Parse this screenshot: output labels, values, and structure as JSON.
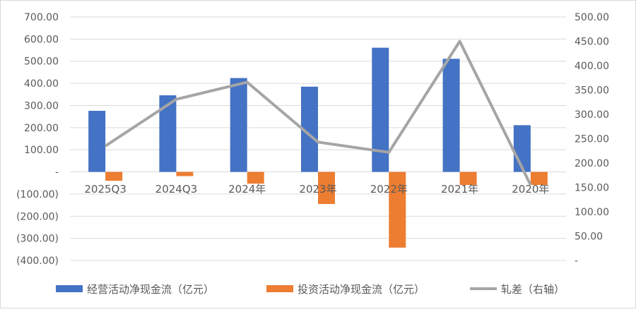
{
  "chart_data": {
    "type": "bar",
    "categories": [
      "2025Q3",
      "2024Q3",
      "2024年",
      "2023年",
      "2022年",
      "2021年",
      "2020年"
    ],
    "series": [
      {
        "name": "经营活动净现金流（亿元）",
        "type": "bar",
        "axis": "left",
        "color": "#4472C4",
        "values": [
          276,
          346,
          424,
          385,
          561,
          511,
          211
        ]
      },
      {
        "name": "投资活动净现金流（亿元）",
        "type": "bar",
        "axis": "left",
        "color": "#ED7D31",
        "values": [
          -40,
          -19,
          -53,
          -145,
          -342,
          -59,
          -59
        ]
      },
      {
        "name": "轧差（右轴）",
        "type": "line",
        "axis": "right",
        "color": "#A5A5A5",
        "values": [
          235,
          331,
          366,
          243,
          222,
          450,
          155
        ]
      }
    ],
    "left_axis": {
      "ylim": [
        -400,
        700
      ],
      "ticks": [
        "700.00",
        "600.00",
        "500.00",
        "400.00",
        "300.00",
        "200.00",
        "100.00",
        "-",
        "(100.00)",
        "(200.00)",
        "(300.00)",
        "(400.00)"
      ]
    },
    "right_axis": {
      "ylim": [
        0,
        500
      ],
      "ticks": [
        "500.00",
        "450.00",
        "400.00",
        "350.00",
        "300.00",
        "250.00",
        "200.00",
        "150.00",
        "100.00",
        "50.00",
        "-"
      ]
    },
    "grid": true,
    "legend": "bottom"
  }
}
